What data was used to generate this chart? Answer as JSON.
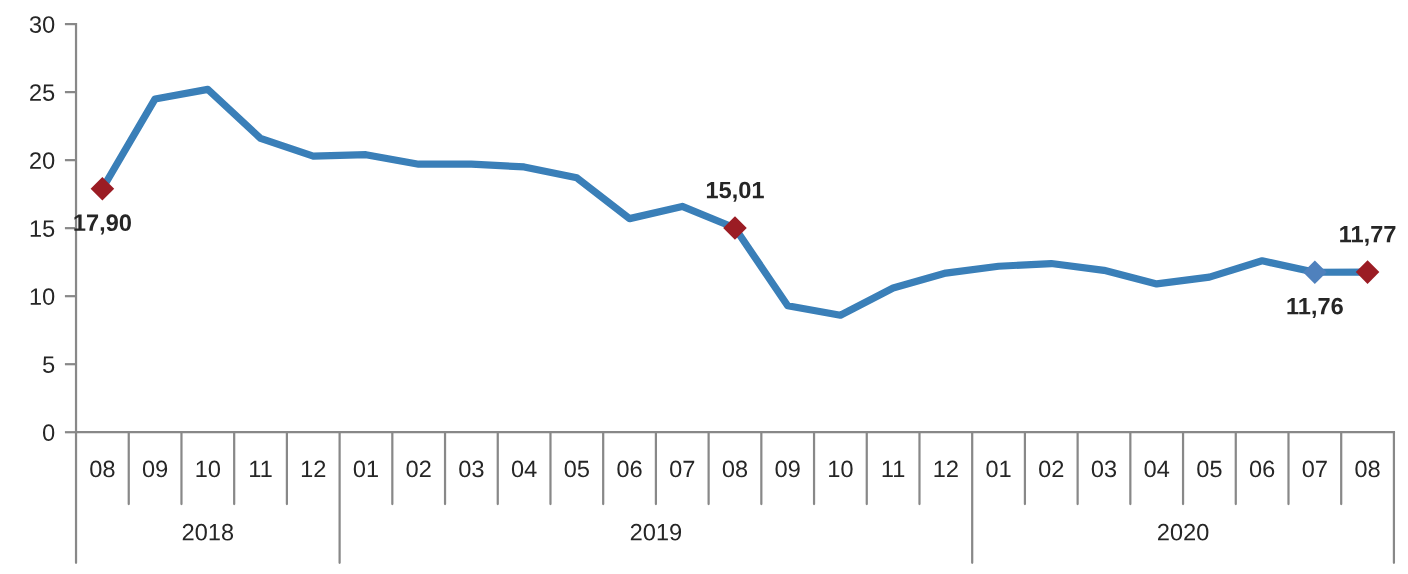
{
  "chart_data": {
    "type": "line",
    "categories": [
      "08",
      "09",
      "10",
      "11",
      "12",
      "01",
      "02",
      "03",
      "04",
      "05",
      "06",
      "07",
      "08",
      "09",
      "10",
      "11",
      "12",
      "01",
      "02",
      "03",
      "04",
      "05",
      "06",
      "07",
      "08"
    ],
    "series": [
      {
        "color": "#3a7fb8",
        "values": [
          17.9,
          24.5,
          25.2,
          21.6,
          20.3,
          20.4,
          19.7,
          19.7,
          19.5,
          18.7,
          15.7,
          16.6,
          15.01,
          9.3,
          8.6,
          10.6,
          11.7,
          12.2,
          12.4,
          11.9,
          10.9,
          11.4,
          12.6,
          11.76,
          11.77
        ],
        "value_labels": [
          "17,90",
          null,
          null,
          null,
          null,
          null,
          null,
          null,
          null,
          null,
          null,
          null,
          "15,01",
          null,
          null,
          null,
          null,
          null,
          null,
          null,
          null,
          null,
          null,
          "11,76",
          "11,77"
        ],
        "colors": [
          "#9b1c24",
          "#3a7fb8",
          "#3a7fb8",
          "#3a7fb8",
          "#3a7fb8",
          "#3a7fb8",
          "#3a7fb8",
          "#3a7fb8",
          "#3a7fb8",
          "#3a7fb8",
          "#3a7fb8",
          "#3a7fb8",
          "#9b1c24",
          "#3a7fb8",
          "#3a7fb8",
          "#3a7fb8",
          "#3a7fb8",
          "#3a7fb8",
          "#3a7fb8",
          "#3a7fb8",
          "#3a7fb8",
          "#3a7fb8",
          "#3a7fb8",
          "#4f81bd",
          "#9b1c24"
        ]
      }
    ],
    "annotations": [
      "2018",
      "2019",
      "2020"
    ],
    "ylim": [
      0,
      30
    ],
    "yticks": [
      0,
      5,
      10,
      15,
      20,
      25,
      30
    ],
    "grid": false,
    "line_style": "solid"
  }
}
